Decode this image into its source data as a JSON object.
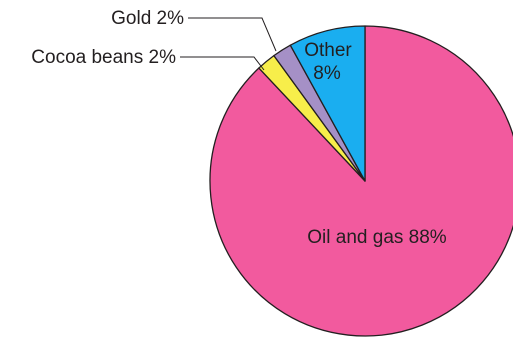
{
  "chart_data": {
    "type": "pie",
    "slices": [
      {
        "label": "Oil and gas",
        "value": 88,
        "value_label": "88%",
        "color": "#f25a9e"
      },
      {
        "label": "Cocoa beans",
        "value": 2,
        "value_label": "2%",
        "color": "#f7ee4a"
      },
      {
        "label": "Gold",
        "value": 2,
        "value_label": "2%",
        "color": "#a590c6"
      },
      {
        "label": "Other",
        "value": 8,
        "value_label": "8%",
        "color": "#1aaef0"
      }
    ],
    "labels": {
      "oil": "Oil and gas 88%",
      "other_name": "Other",
      "other_value": "8%",
      "cocoa": "Cocoa beans 2%",
      "gold": "Gold 2%"
    }
  }
}
